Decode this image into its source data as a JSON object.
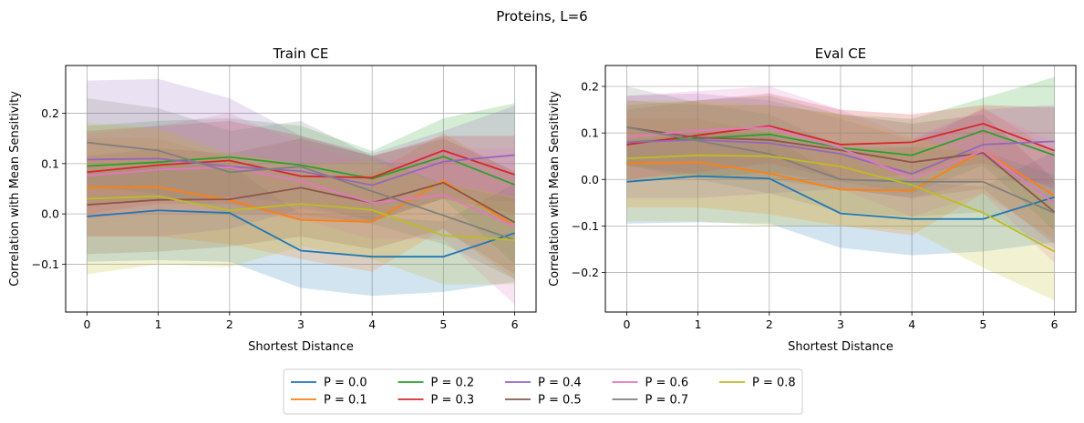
{
  "figure": {
    "suptitle": "Proteins, L=6",
    "legend_placement": "bottom-center"
  },
  "series_colors": [
    "#1f77b4",
    "#ff7f0e",
    "#2ca02c",
    "#d62728",
    "#9467bd",
    "#8c564b",
    "#e377c2",
    "#7f7f7f",
    "#bcbd22"
  ],
  "chart_data": [
    {
      "type": "line",
      "title": "Train CE",
      "xlabel": "Shortest Distance",
      "ylabel": "Correlation with Mean Sensitivity",
      "x": [
        0,
        1,
        2,
        3,
        4,
        5,
        6
      ],
      "xlim": [
        -0.3,
        6.3
      ],
      "ylim": [
        -0.195,
        0.295
      ],
      "xticks": [
        0,
        1,
        2,
        3,
        4,
        5,
        6
      ],
      "yticks": [
        -0.1,
        0.0,
        0.1,
        0.2
      ],
      "ytick_labels": [
        "−0.1",
        "0.0",
        "0.1",
        "0.2"
      ],
      "grid": true,
      "band": "shaded interval",
      "series": [
        {
          "name": "P = 0.0",
          "values": [
            -0.005,
            0.007,
            0.002,
            -0.073,
            -0.085,
            -0.085,
            -0.038
          ],
          "lower": [
            -0.095,
            -0.092,
            -0.095,
            -0.147,
            -0.163,
            -0.155,
            -0.135
          ],
          "upper": [
            0.085,
            0.098,
            0.098,
            0.0,
            -0.005,
            -0.015,
            0.06
          ]
        },
        {
          "name": "P = 0.1",
          "values": [
            0.052,
            0.053,
            0.027,
            -0.012,
            -0.016,
            0.066,
            -0.025
          ],
          "lower": [
            -0.045,
            -0.045,
            -0.06,
            -0.09,
            -0.115,
            -0.03,
            -0.13
          ],
          "upper": [
            0.15,
            0.15,
            0.11,
            0.07,
            0.08,
            0.16,
            0.08
          ]
        },
        {
          "name": "P = 0.2",
          "values": [
            0.095,
            0.103,
            0.113,
            0.097,
            0.07,
            0.114,
            0.058
          ],
          "lower": [
            0.02,
            0.025,
            0.035,
            0.02,
            -0.015,
            0.03,
            -0.1
          ],
          "upper": [
            0.175,
            0.185,
            0.19,
            0.175,
            0.125,
            0.19,
            0.22
          ]
        },
        {
          "name": "P = 0.3",
          "values": [
            0.083,
            0.097,
            0.106,
            0.075,
            0.072,
            0.126,
            0.078
          ],
          "lower": [
            0.0,
            0.02,
            0.02,
            -0.01,
            -0.015,
            0.03,
            0.0
          ],
          "upper": [
            0.165,
            0.175,
            0.185,
            0.155,
            0.115,
            0.155,
            0.155
          ]
        },
        {
          "name": "P = 0.4",
          "values": [
            0.108,
            0.11,
            0.094,
            0.085,
            0.057,
            0.104,
            0.117
          ],
          "lower": [
            -0.045,
            -0.045,
            -0.03,
            0.01,
            -0.01,
            0.03,
            0.025
          ],
          "upper": [
            0.265,
            0.268,
            0.23,
            0.155,
            0.12,
            0.165,
            0.215
          ]
        },
        {
          "name": "P = 0.5",
          "values": [
            0.018,
            0.028,
            0.029,
            0.052,
            0.022,
            0.062,
            -0.017
          ],
          "lower": [
            -0.08,
            -0.075,
            -0.065,
            -0.045,
            -0.07,
            -0.03,
            -0.12
          ],
          "upper": [
            0.115,
            0.13,
            0.12,
            0.15,
            0.115,
            0.15,
            0.085
          ]
        },
        {
          "name": "P = 0.6",
          "values": [
            0.076,
            0.088,
            0.093,
            0.065,
            0.022,
            0.038,
            -0.025
          ],
          "lower": [
            -0.01,
            0.0,
            0.0,
            -0.01,
            -0.05,
            -0.05,
            -0.18
          ],
          "upper": [
            0.16,
            0.175,
            0.2,
            0.14,
            0.1,
            0.13,
            0.13
          ]
        },
        {
          "name": "P = 0.7",
          "values": [
            0.142,
            0.126,
            0.083,
            0.094,
            0.045,
            -0.003,
            -0.052
          ],
          "lower": [
            0.055,
            0.04,
            0.0,
            0.0,
            -0.02,
            -0.06,
            -0.13
          ],
          "upper": [
            0.23,
            0.21,
            0.165,
            0.185,
            0.115,
            0.06,
            0.03
          ]
        },
        {
          "name": "P = 0.8",
          "values": [
            0.03,
            0.035,
            0.007,
            0.02,
            0.008,
            -0.043,
            -0.052
          ],
          "lower": [
            -0.12,
            -0.1,
            -0.105,
            -0.065,
            -0.09,
            -0.14,
            -0.14
          ],
          "upper": [
            0.18,
            0.17,
            0.12,
            0.1,
            0.105,
            0.06,
            0.035
          ]
        }
      ]
    },
    {
      "type": "line",
      "title": "Eval CE",
      "xlabel": "Shortest Distance",
      "ylabel": "Correlation with Mean Sensitivity",
      "x": [
        0,
        1,
        2,
        3,
        4,
        5,
        6
      ],
      "xlim": [
        -0.3,
        6.3
      ],
      "ylim": [
        -0.285,
        0.245
      ],
      "xticks": [
        0,
        1,
        2,
        3,
        4,
        5,
        6
      ],
      "yticks": [
        -0.2,
        -0.1,
        0.0,
        0.1,
        0.2
      ],
      "ytick_labels": [
        "−0.2",
        "−0.1",
        "0.0",
        "0.1",
        "0.2"
      ],
      "grid": true,
      "band": "shaded interval",
      "series": [
        {
          "name": "P = 0.0",
          "values": [
            -0.005,
            0.007,
            0.002,
            -0.073,
            -0.085,
            -0.085,
            -0.038
          ],
          "lower": [
            -0.095,
            -0.092,
            -0.095,
            -0.147,
            -0.163,
            -0.155,
            -0.135
          ],
          "upper": [
            0.085,
            0.098,
            0.098,
            0.0,
            -0.005,
            -0.015,
            0.06
          ]
        },
        {
          "name": "P = 0.1",
          "values": [
            0.035,
            0.037,
            0.013,
            -0.022,
            -0.024,
            0.062,
            -0.035
          ],
          "lower": [
            -0.06,
            -0.06,
            -0.075,
            -0.1,
            -0.12,
            -0.03,
            -0.13
          ],
          "upper": [
            0.13,
            0.13,
            0.1,
            0.06,
            0.07,
            0.155,
            0.06
          ]
        },
        {
          "name": "P = 0.2",
          "values": [
            0.08,
            0.088,
            0.097,
            0.068,
            0.052,
            0.105,
            0.052
          ],
          "lower": [
            0.0,
            0.005,
            0.015,
            -0.005,
            -0.03,
            0.03,
            -0.11
          ],
          "upper": [
            0.16,
            0.17,
            0.18,
            0.14,
            0.13,
            0.175,
            0.22
          ]
        },
        {
          "name": "P = 0.3",
          "values": [
            0.075,
            0.095,
            0.115,
            0.075,
            0.08,
            0.12,
            0.062
          ],
          "lower": [
            0.0,
            0.015,
            0.035,
            0.0,
            0.01,
            0.035,
            -0.02
          ],
          "upper": [
            0.15,
            0.17,
            0.185,
            0.15,
            0.14,
            0.16,
            0.155
          ]
        },
        {
          "name": "P = 0.4",
          "values": [
            0.08,
            0.085,
            0.078,
            0.055,
            0.012,
            0.075,
            0.082
          ],
          "lower": [
            -0.04,
            -0.04,
            -0.03,
            -0.02,
            -0.04,
            0.0,
            -0.01
          ],
          "upper": [
            0.18,
            0.185,
            0.17,
            0.13,
            0.085,
            0.15,
            0.16
          ]
        },
        {
          "name": "P = 0.5",
          "values": [
            0.112,
            0.09,
            0.085,
            0.063,
            0.037,
            0.057,
            -0.07
          ],
          "lower": [
            0.03,
            0.01,
            0.0,
            -0.02,
            -0.04,
            -0.02,
            -0.14
          ],
          "upper": [
            0.17,
            0.16,
            0.16,
            0.14,
            0.12,
            0.14,
            0.0
          ]
        },
        {
          "name": "P = 0.6",
          "values": [
            0.092,
            0.105,
            0.112,
            0.068,
            0.002,
            0.062,
            -0.052
          ],
          "lower": [
            0.0,
            0.015,
            0.02,
            -0.02,
            -0.08,
            -0.03,
            -0.18
          ],
          "upper": [
            0.18,
            0.19,
            0.2,
            0.15,
            0.09,
            0.15,
            0.08
          ]
        },
        {
          "name": "P = 0.7",
          "values": [
            0.112,
            0.083,
            0.055,
            0.0,
            -0.005,
            -0.005,
            -0.072
          ],
          "lower": [
            0.03,
            0.0,
            -0.03,
            -0.07,
            -0.08,
            -0.07,
            -0.15
          ],
          "upper": [
            0.2,
            0.165,
            0.14,
            0.07,
            0.07,
            0.06,
            0.01
          ]
        },
        {
          "name": "P = 0.8",
          "values": [
            0.045,
            0.052,
            0.05,
            0.028,
            -0.012,
            -0.072,
            -0.155
          ],
          "lower": [
            -0.09,
            -0.09,
            -0.1,
            -0.1,
            -0.11,
            -0.19,
            -0.26
          ],
          "upper": [
            0.17,
            0.17,
            0.16,
            0.14,
            0.09,
            0.05,
            -0.05
          ]
        }
      ]
    }
  ]
}
